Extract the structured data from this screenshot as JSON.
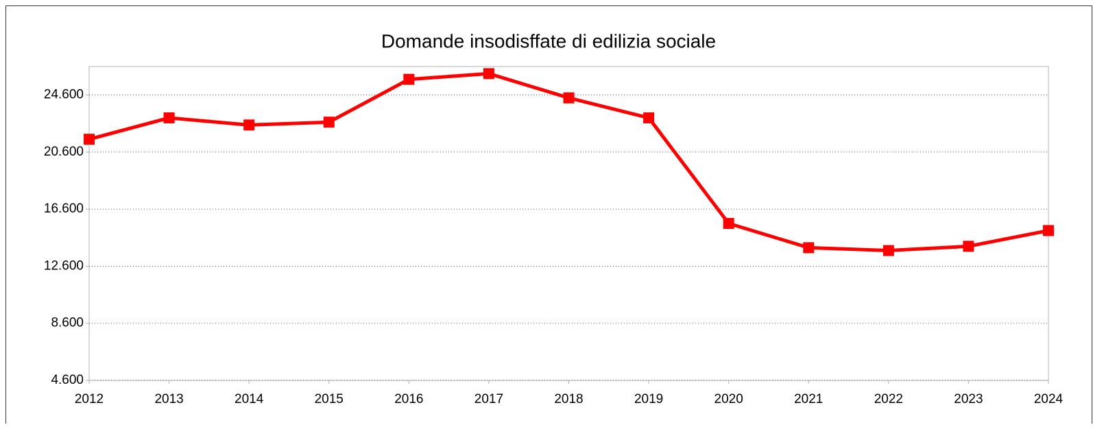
{
  "chart_data": {
    "type": "line",
    "title": "Domande insodisffate di edilizia sociale",
    "categories": [
      "2012",
      "2013",
      "2014",
      "2015",
      "2016",
      "2017",
      "2018",
      "2019",
      "2020",
      "2021",
      "2022",
      "2023",
      "2024"
    ],
    "series": [
      {
        "name": "Domande insodisffate",
        "color": "#ff0000",
        "values": [
          21500,
          23000,
          22500,
          22700,
          25700,
          26100,
          24400,
          23000,
          15600,
          13900,
          13700,
          14000,
          15100
        ]
      }
    ],
    "ylim": [
      4600,
      26600
    ],
    "yticks": [
      {
        "value": 4600,
        "label": "4.600"
      },
      {
        "value": 8600,
        "label": "8.600"
      },
      {
        "value": 12600,
        "label": "12.600"
      },
      {
        "value": 16600,
        "label": "16.600"
      },
      {
        "value": 20600,
        "label": "20.600"
      },
      {
        "value": 24600,
        "label": "24.600"
      }
    ],
    "grid": true
  }
}
